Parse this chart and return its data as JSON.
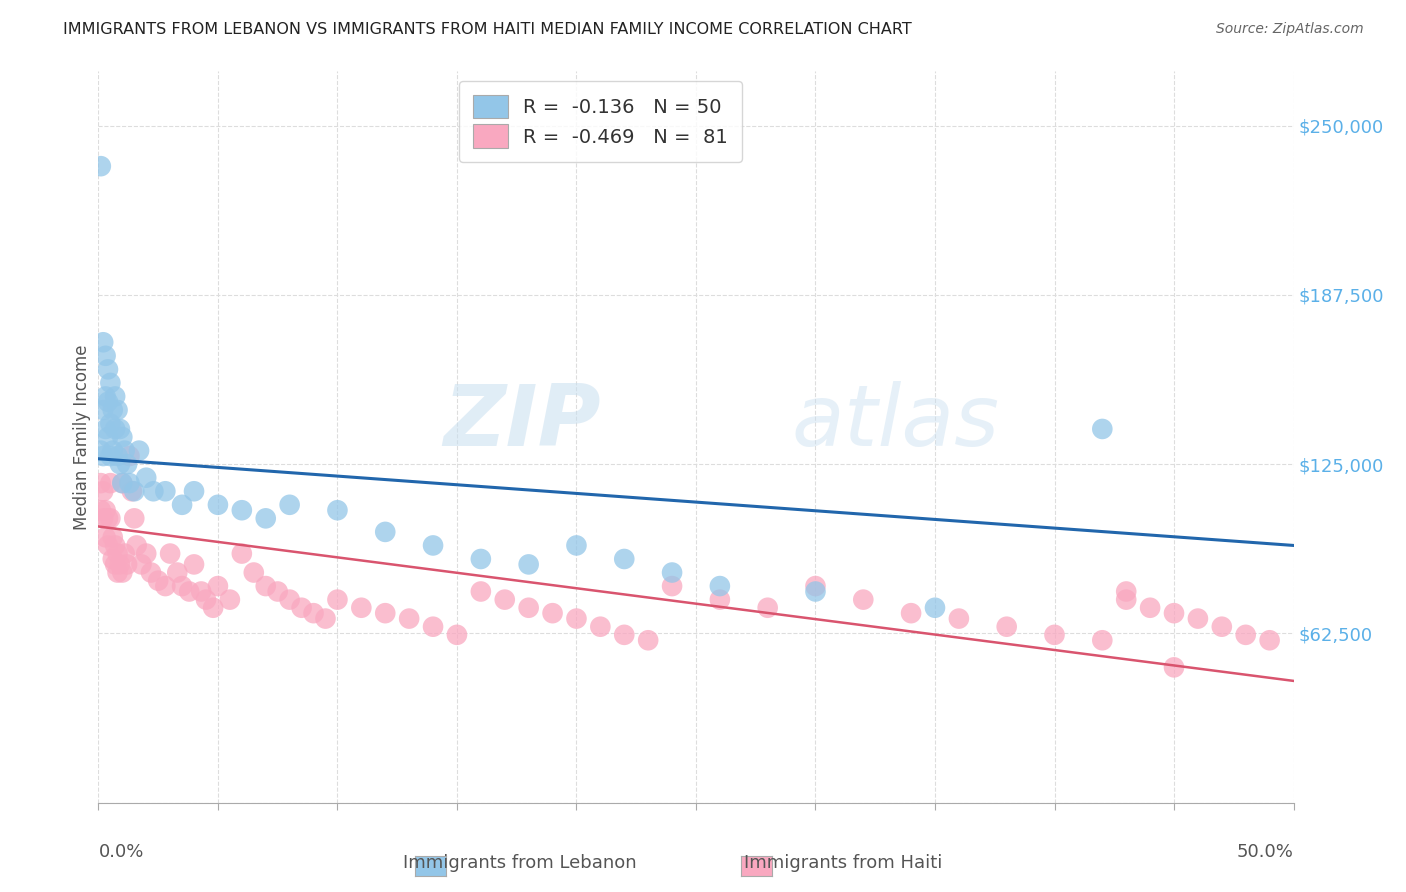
{
  "title": "IMMIGRANTS FROM LEBANON VS IMMIGRANTS FROM HAITI MEDIAN FAMILY INCOME CORRELATION CHART",
  "source": "Source: ZipAtlas.com",
  "ylabel": "Median Family Income",
  "yticks": [
    0,
    62500,
    125000,
    187500,
    250000
  ],
  "ytick_labels": [
    "",
    "$62,500",
    "$125,000",
    "$187,500",
    "$250,000"
  ],
  "xlim": [
    0.0,
    0.5
  ],
  "ylim": [
    0,
    270000
  ],
  "legend_r_lebanon": "-0.136",
  "legend_n_lebanon": "50",
  "legend_r_haiti": "-0.469",
  "legend_n_haiti": "81",
  "color_lebanon": "#93c6e8",
  "color_haiti": "#f9a8c0",
  "color_line_lebanon": "#2166ac",
  "color_line_haiti": "#d9546e",
  "watermark_zip": "ZIP",
  "watermark_atlas": "atlas",
  "lebanon_x": [
    0.001,
    0.001,
    0.002,
    0.002,
    0.002,
    0.003,
    0.003,
    0.003,
    0.004,
    0.004,
    0.004,
    0.005,
    0.005,
    0.005,
    0.006,
    0.006,
    0.007,
    0.007,
    0.008,
    0.008,
    0.009,
    0.009,
    0.01,
    0.01,
    0.011,
    0.012,
    0.013,
    0.015,
    0.017,
    0.02,
    0.023,
    0.028,
    0.035,
    0.04,
    0.05,
    0.06,
    0.07,
    0.08,
    0.1,
    0.12,
    0.14,
    0.16,
    0.18,
    0.2,
    0.22,
    0.24,
    0.26,
    0.3,
    0.35,
    0.42
  ],
  "lebanon_y": [
    235000,
    130000,
    170000,
    145000,
    128000,
    165000,
    150000,
    138000,
    160000,
    148000,
    135000,
    155000,
    140000,
    128000,
    145000,
    130000,
    150000,
    138000,
    145000,
    128000,
    138000,
    125000,
    135000,
    118000,
    130000,
    125000,
    118000,
    115000,
    130000,
    120000,
    115000,
    115000,
    110000,
    115000,
    110000,
    108000,
    105000,
    110000,
    108000,
    100000,
    95000,
    90000,
    88000,
    95000,
    90000,
    85000,
    80000,
    78000,
    72000,
    138000
  ],
  "haiti_x": [
    0.001,
    0.001,
    0.002,
    0.002,
    0.003,
    0.003,
    0.004,
    0.004,
    0.005,
    0.005,
    0.006,
    0.006,
    0.007,
    0.007,
    0.008,
    0.008,
    0.009,
    0.01,
    0.01,
    0.011,
    0.012,
    0.013,
    0.014,
    0.015,
    0.016,
    0.018,
    0.02,
    0.022,
    0.025,
    0.028,
    0.03,
    0.033,
    0.035,
    0.038,
    0.04,
    0.043,
    0.045,
    0.048,
    0.05,
    0.055,
    0.06,
    0.065,
    0.07,
    0.075,
    0.08,
    0.085,
    0.09,
    0.095,
    0.1,
    0.11,
    0.12,
    0.13,
    0.14,
    0.15,
    0.16,
    0.17,
    0.18,
    0.19,
    0.2,
    0.21,
    0.22,
    0.23,
    0.24,
    0.26,
    0.28,
    0.3,
    0.32,
    0.34,
    0.36,
    0.38,
    0.4,
    0.42,
    0.43,
    0.44,
    0.45,
    0.46,
    0.47,
    0.48,
    0.49,
    0.43,
    0.45
  ],
  "haiti_y": [
    118000,
    108000,
    115000,
    105000,
    108000,
    98000,
    105000,
    95000,
    118000,
    105000,
    98000,
    90000,
    95000,
    88000,
    92000,
    85000,
    88000,
    118000,
    85000,
    92000,
    88000,
    128000,
    115000,
    105000,
    95000,
    88000,
    92000,
    85000,
    82000,
    80000,
    92000,
    85000,
    80000,
    78000,
    88000,
    78000,
    75000,
    72000,
    80000,
    75000,
    92000,
    85000,
    80000,
    78000,
    75000,
    72000,
    70000,
    68000,
    75000,
    72000,
    70000,
    68000,
    65000,
    62000,
    78000,
    75000,
    72000,
    70000,
    68000,
    65000,
    62000,
    60000,
    80000,
    75000,
    72000,
    80000,
    75000,
    70000,
    68000,
    65000,
    62000,
    60000,
    75000,
    72000,
    70000,
    68000,
    65000,
    62000,
    60000,
    78000,
    50000
  ]
}
